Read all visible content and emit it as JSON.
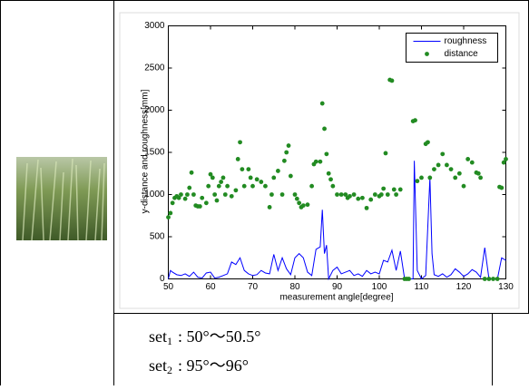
{
  "chart_data": {
    "type": "line",
    "xlabel": "measurement angle[degree]",
    "ylabel": "y-distance and roughness[mm]",
    "xlim": [
      50,
      130
    ],
    "xticks": [
      50,
      60,
      70,
      80,
      90,
      100,
      110,
      120,
      130
    ],
    "ylim": [
      0,
      3000
    ],
    "yticks": [
      0,
      500,
      1000,
      1500,
      2000,
      2500,
      3000
    ],
    "legend": "top right",
    "series": [
      {
        "name": "roughness",
        "color": "#0000ff",
        "style": "line",
        "x": [
          50,
          50.5,
          51,
          52,
          53,
          54,
          55,
          56,
          57,
          58,
          59,
          60,
          61,
          62,
          63,
          64,
          65,
          66,
          67,
          68,
          69,
          70,
          71,
          72,
          73,
          74,
          75,
          76,
          77,
          78,
          79,
          80,
          81,
          82,
          83,
          84,
          85,
          86,
          86.5,
          87,
          87.5,
          88,
          89,
          90,
          91,
          92,
          93,
          94,
          95,
          96,
          97,
          98,
          99,
          100,
          101,
          102,
          103,
          104,
          105,
          106,
          107,
          108,
          108.3,
          109,
          110,
          111,
          112,
          112.5,
          113,
          114,
          115,
          116,
          117,
          118,
          119,
          120,
          121,
          122,
          123,
          124,
          125,
          126,
          127,
          128,
          129,
          130
        ],
        "values": [
          0,
          100,
          80,
          50,
          40,
          60,
          30,
          80,
          20,
          10,
          70,
          80,
          10,
          20,
          40,
          60,
          200,
          170,
          250,
          100,
          60,
          40,
          50,
          100,
          70,
          60,
          290,
          100,
          250,
          120,
          50,
          250,
          300,
          250,
          80,
          40,
          350,
          380,
          820,
          300,
          400,
          0,
          100,
          140,
          60,
          80,
          100,
          40,
          60,
          30,
          100,
          60,
          80,
          60,
          220,
          200,
          340,
          100,
          330,
          0,
          0,
          0,
          1400,
          100,
          0,
          40,
          1200,
          300,
          50,
          30,
          60,
          20,
          50,
          120,
          80,
          30,
          60,
          110,
          80,
          20,
          370,
          0,
          0,
          0,
          250,
          220
        ]
      },
      {
        "name": "distance",
        "color": "#228b22",
        "style": "scatter",
        "x": [
          50,
          50.5,
          51,
          51.5,
          52,
          52.5,
          53,
          54,
          54.5,
          55,
          55.5,
          56,
          56.5,
          57,
          57.5,
          58,
          59,
          59.5,
          60,
          60.5,
          61,
          61.5,
          62,
          62.5,
          63,
          63.5,
          64,
          65,
          66,
          66.5,
          67,
          67.5,
          68,
          69,
          69.5,
          70,
          71,
          72,
          73,
          74,
          74.5,
          75,
          76,
          77,
          77.5,
          78,
          78.5,
          79,
          80,
          80.5,
          81,
          81.5,
          82,
          83,
          84,
          84.5,
          85,
          86,
          86.5,
          87,
          87.5,
          88,
          88.5,
          89,
          90,
          91,
          92,
          92.5,
          93,
          94,
          95,
          96,
          97,
          98,
          99,
          100,
          100.5,
          101,
          101.5,
          102,
          102.5,
          103,
          103.5,
          104,
          105,
          106,
          106.5,
          107,
          108,
          108.5,
          109,
          110,
          111,
          111.5,
          112,
          113,
          114,
          115,
          116,
          117,
          118,
          119,
          120,
          121,
          122,
          123,
          123.5,
          124,
          125,
          126,
          127,
          128,
          128.5,
          129,
          129.5,
          130
        ],
        "values": [
          730,
          780,
          900,
          960,
          980,
          960,
          1000,
          950,
          1000,
          1080,
          1260,
          1000,
          870,
          860,
          860,
          960,
          900,
          1100,
          1240,
          1200,
          1000,
          930,
          1100,
          1150,
          1200,
          1000,
          1100,
          980,
          1050,
          1420,
          1620,
          1300,
          1100,
          1300,
          1200,
          1100,
          1180,
          1150,
          1100,
          850,
          1000,
          1200,
          1280,
          1000,
          1400,
          1500,
          1580,
          1220,
          1000,
          950,
          900,
          850,
          870,
          880,
          1100,
          1360,
          1390,
          1390,
          2080,
          1780,
          1480,
          1250,
          1180,
          1100,
          1000,
          1000,
          1000,
          960,
          980,
          1000,
          950,
          960,
          840,
          940,
          1000,
          980,
          1000,
          1070,
          1490,
          1000,
          2360,
          2350,
          1060,
          1000,
          1060,
          0,
          0,
          0,
          1870,
          1880,
          1160,
          1200,
          1600,
          1620,
          1200,
          1300,
          1350,
          1480,
          1350,
          1300,
          1200,
          1250,
          1100,
          1420,
          1380,
          1260,
          1250,
          1200,
          0,
          0,
          0,
          0,
          1090,
          1080,
          1380,
          1420
        ]
      }
    ]
  },
  "table": {
    "rows": [
      {
        "label": "set",
        "sub": "1",
        "range": ":  50°～50.5°"
      },
      {
        "label": "set",
        "sub": "2",
        "range": ":  95°～96°"
      }
    ]
  }
}
